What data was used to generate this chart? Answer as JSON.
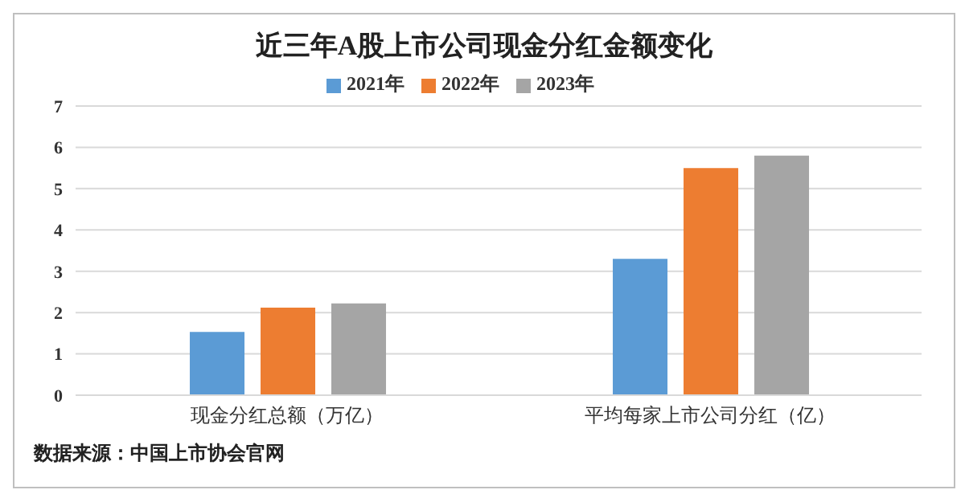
{
  "chart_data": {
    "type": "bar",
    "title": "近三年A股上市公司现金分红金额变化",
    "categories": [
      "现金分红总额（万亿）",
      "平均每家上市公司分红（亿）"
    ],
    "series": [
      {
        "name": "2021年",
        "color": "#5b9bd5",
        "values": [
          1.53,
          3.3
        ]
      },
      {
        "name": "2022年",
        "color": "#ed7d31",
        "values": [
          2.12,
          5.5
        ]
      },
      {
        "name": "2023年",
        "color": "#a5a5a5",
        "values": [
          2.22,
          5.8
        ]
      }
    ],
    "ylim": [
      0,
      7
    ],
    "yticks": [
      0,
      1,
      2,
      3,
      4,
      5,
      6,
      7
    ],
    "grid": "y",
    "legend": "top",
    "annotations": [
      "数据来源：中国上市协会官网"
    ]
  }
}
